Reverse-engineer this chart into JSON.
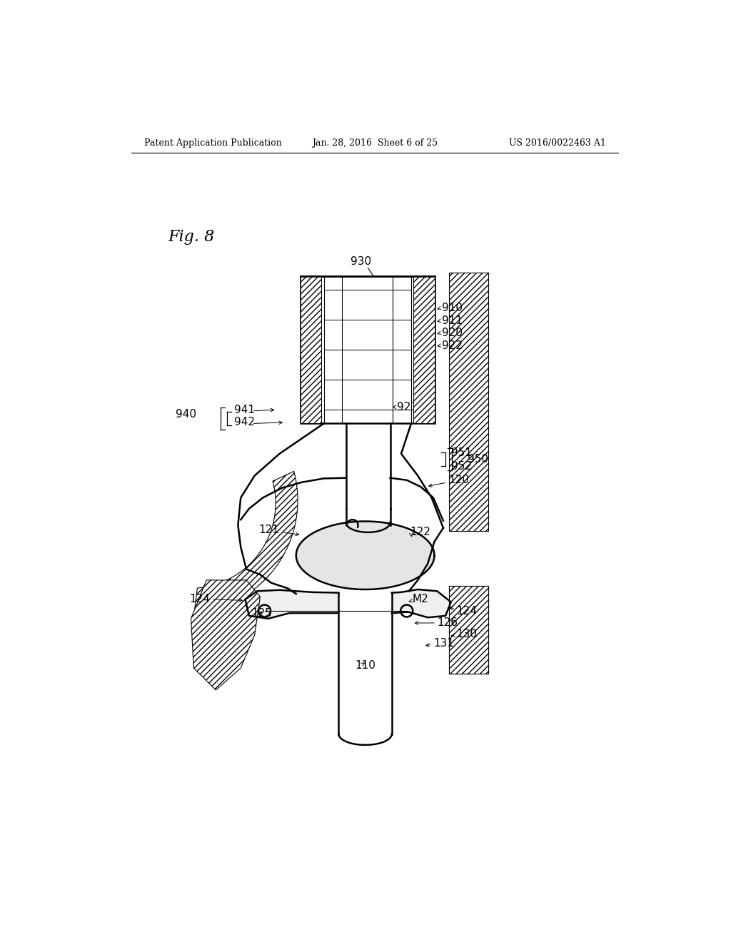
{
  "bg_color": "#ffffff",
  "line_color": "#000000",
  "fig_label": "Fig. 8",
  "header_left": "Patent Application Publication",
  "header_mid": "Jan. 28, 2016  Sheet 6 of 25",
  "header_right": "US 2016/0022463 A1"
}
